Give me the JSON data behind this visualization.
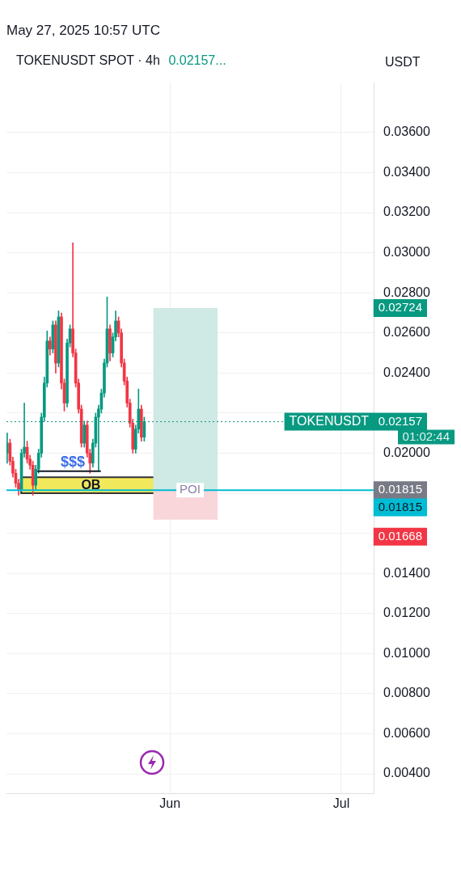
{
  "chart_data": {
    "type": "candlestick",
    "title": "TOKENUSDT SPOT · 4h",
    "subtitle": "0.02157...",
    "x": [
      "2025-05-03T12:00",
      "2025-05-04T00:00",
      "2025-05-04T12:00",
      "2025-05-05T00:00",
      "2025-05-05T12:00",
      "2025-05-06T00:00",
      "2025-05-06T12:00",
      "2025-05-07T00:00",
      "2025-05-07T12:00",
      "2025-05-08T00:00",
      "2025-05-08T12:00",
      "2025-05-09T00:00",
      "2025-05-09T12:00",
      "2025-05-10T00:00",
      "2025-05-10T12:00",
      "2025-05-11T00:00",
      "2025-05-11T12:00",
      "2025-05-12T00:00",
      "2025-05-12T12:00",
      "2025-05-13T00:00",
      "2025-05-13T12:00",
      "2025-05-14T00:00",
      "2025-05-14T12:00",
      "2025-05-15T00:00",
      "2025-05-15T12:00",
      "2025-05-16T00:00",
      "2025-05-16T12:00",
      "2025-05-17T00:00",
      "2025-05-17T12:00",
      "2025-05-18T00:00",
      "2025-05-18T12:00",
      "2025-05-19T00:00",
      "2025-05-19T12:00",
      "2025-05-20T00:00",
      "2025-05-20T12:00",
      "2025-05-21T00:00",
      "2025-05-21T12:00",
      "2025-05-22T00:00",
      "2025-05-22T12:00",
      "2025-05-23T00:00",
      "2025-05-23T12:00",
      "2025-05-24T00:00",
      "2025-05-24T12:00",
      "2025-05-25T00:00",
      "2025-05-25T12:00",
      "2025-05-26T00:00",
      "2025-05-26T12:00",
      "2025-05-27T00:00",
      "2025-05-27T12:00"
    ],
    "ohlc": [
      [
        0.02,
        0.021,
        0.0195,
        0.0205
      ],
      [
        0.0205,
        0.0207,
        0.0194,
        0.0196
      ],
      [
        0.0196,
        0.0198,
        0.0188,
        0.019
      ],
      [
        0.019,
        0.0192,
        0.0183,
        0.0185
      ],
      [
        0.0185,
        0.0187,
        0.0179,
        0.0182
      ],
      [
        0.0182,
        0.0202,
        0.0181,
        0.02
      ],
      [
        0.02,
        0.0225,
        0.0198,
        0.0203
      ],
      [
        0.0203,
        0.0206,
        0.0195,
        0.0197
      ],
      [
        0.0197,
        0.0199,
        0.0192,
        0.0194
      ],
      [
        0.0194,
        0.0196,
        0.0179,
        0.0184
      ],
      [
        0.0184,
        0.0194,
        0.0182,
        0.0192
      ],
      [
        0.0192,
        0.0202,
        0.019,
        0.02
      ],
      [
        0.02,
        0.022,
        0.0198,
        0.0218
      ],
      [
        0.0218,
        0.0238,
        0.0216,
        0.0235
      ],
      [
        0.0235,
        0.0261,
        0.0233,
        0.0256
      ],
      [
        0.0256,
        0.0258,
        0.0249,
        0.0252
      ],
      [
        0.0252,
        0.0266,
        0.025,
        0.0264
      ],
      [
        0.0264,
        0.0266,
        0.024,
        0.0245
      ],
      [
        0.0245,
        0.0271,
        0.0243,
        0.0268
      ],
      [
        0.0268,
        0.027,
        0.0232,
        0.0235
      ],
      [
        0.0235,
        0.0237,
        0.0221,
        0.0225
      ],
      [
        0.0225,
        0.0257,
        0.0223,
        0.0255
      ],
      [
        0.0255,
        0.0264,
        0.0253,
        0.0262
      ],
      [
        0.0262,
        0.0305,
        0.0248,
        0.025
      ],
      [
        0.025,
        0.0252,
        0.0233,
        0.0235
      ],
      [
        0.0235,
        0.0237,
        0.022,
        0.0222
      ],
      [
        0.0222,
        0.0224,
        0.0203,
        0.0205
      ],
      [
        0.0205,
        0.0216,
        0.0203,
        0.0214
      ],
      [
        0.0214,
        0.0216,
        0.0198,
        0.02
      ],
      [
        0.02,
        0.0202,
        0.019,
        0.0195
      ],
      [
        0.0195,
        0.0207,
        0.0193,
        0.0205
      ],
      [
        0.0205,
        0.022,
        0.0203,
        0.0218
      ],
      [
        0.0218,
        0.0224,
        0.0191,
        0.0222
      ],
      [
        0.0222,
        0.0232,
        0.022,
        0.023
      ],
      [
        0.023,
        0.0247,
        0.0228,
        0.0245
      ],
      [
        0.0245,
        0.0278,
        0.0243,
        0.0262
      ],
      [
        0.0262,
        0.0264,
        0.0246,
        0.025
      ],
      [
        0.025,
        0.026,
        0.0248,
        0.0258
      ],
      [
        0.0258,
        0.0271,
        0.0256,
        0.0266
      ],
      [
        0.0266,
        0.0268,
        0.0258,
        0.026
      ],
      [
        0.026,
        0.0262,
        0.0243,
        0.0245
      ],
      [
        0.0245,
        0.0247,
        0.0234,
        0.0236
      ],
      [
        0.0236,
        0.0238,
        0.0223,
        0.0225
      ],
      [
        0.0225,
        0.0227,
        0.0213,
        0.0215
      ],
      [
        0.0215,
        0.0217,
        0.02,
        0.0202
      ],
      [
        0.0202,
        0.0214,
        0.02,
        0.0212
      ],
      [
        0.0212,
        0.0232,
        0.021,
        0.0222
      ],
      [
        0.0222,
        0.0224,
        0.0206,
        0.0208
      ],
      [
        0.0208,
        0.0218,
        0.0206,
        0.02157
      ]
    ],
    "colors": [
      "#089981",
      "#f23645",
      "#f23645",
      "#f23645",
      "#f23645",
      "#089981",
      "#089981",
      "#f23645",
      "#f23645",
      "#f23645",
      "#089981",
      "#089981",
      "#089981",
      "#089981",
      "#089981",
      "#f23645",
      "#089981",
      "#f23645",
      "#089981",
      "#f23645",
      "#f23645",
      "#089981",
      "#089981",
      "#f23645",
      "#f23645",
      "#f23645",
      "#f23645",
      "#089981",
      "#f23645",
      "#f23645",
      "#089981",
      "#089981",
      "#089981",
      "#089981",
      "#089981",
      "#089981",
      "#f23645",
      "#089981",
      "#089981",
      "#f23645",
      "#f23645",
      "#f23645",
      "#f23645",
      "#f23645",
      "#f23645",
      "#089981",
      "#089981",
      "#f23645",
      "#089981"
    ],
    "xlim": [
      "2025-05-03T09:00",
      "2025-07-06T16:00"
    ],
    "y2lim": [
      0.003,
      0.0385
    ],
    "y2ticks": [
      0.02724,
      0.02157,
      0.01815
    ],
    "y3lim": [
      0.00385,
      0.03935
    ],
    "y3ticks": [
      0.01815,
      0.01668
    ],
    "xticks": [
      {
        "value": "2025-06-01",
        "label": "Jun"
      },
      {
        "value": "2025-07-01",
        "label": "Jul"
      }
    ],
    "ylim": [
      0.003,
      0.0385
    ],
    "yticks": [
      {
        "value": 0.004,
        "label": "0.00400"
      },
      {
        "value": 0.006,
        "label": "0.00600"
      },
      {
        "value": 0.008,
        "label": "0.00800"
      },
      {
        "value": 0.01,
        "label": "0.01000"
      },
      {
        "value": 0.012,
        "label": "0.01200"
      },
      {
        "value": 0.014,
        "label": "0.01400"
      },
      {
        "value": 0.016,
        "label": null
      },
      {
        "value": 0.018,
        "label": null
      },
      {
        "value": 0.02,
        "label": "0.02000"
      },
      {
        "value": 0.022,
        "label": null
      },
      {
        "value": 0.024,
        "label": "0.02400"
      },
      {
        "value": 0.026,
        "label": "0.02600"
      },
      {
        "value": 0.028,
        "label": "0.02800"
      },
      {
        "value": 0.03,
        "label": "0.03000"
      },
      {
        "value": 0.032,
        "label": "0.03200"
      },
      {
        "value": 0.034,
        "label": "0.03400"
      },
      {
        "value": 0.036,
        "label": "0.03600"
      }
    ],
    "grid": true,
    "ref_lines": [
      {
        "axis": "y",
        "value": 0.02157,
        "label": "TOKENUSDT",
        "color": "#089981",
        "line_style": "dotted"
      },
      {
        "axis": "y",
        "value": 0.01815,
        "label": "POI",
        "color": "#00bcd4"
      },
      {
        "axis": "y",
        "value": 0.0191,
        "color": "#131722"
      }
    ],
    "bands": [
      {
        "axis": "y",
        "from": 0.018,
        "to": 0.0188,
        "label": "OB",
        "color": "#f2e85c"
      },
      {
        "axis": "y",
        "from": 0.01815,
        "to": 0.02724,
        "color": "#cfe9e4"
      },
      {
        "axis": "y",
        "from": 0.01668,
        "to": 0.01815,
        "color": "#f9d6da"
      }
    ],
    "annotations": [
      "May 27, 2025 10:57 UTC",
      "01:02:44",
      "USDT",
      {
        "text": "$$$",
        "x": "2025-05-15T00:00",
        "y": 0.0191
      }
    ]
  }
}
